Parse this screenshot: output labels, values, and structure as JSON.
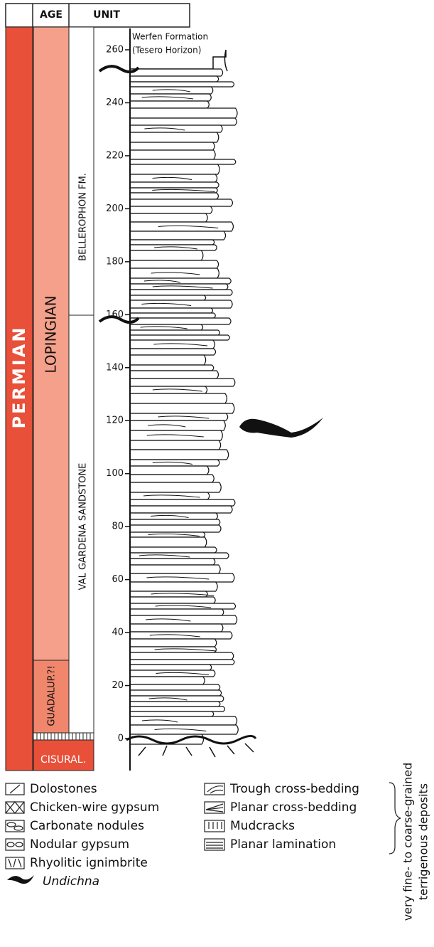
{
  "header": {
    "age": "AGE",
    "unit": "UNIT"
  },
  "age": {
    "period": "PERMIAN",
    "epochs": [
      "LOPINGIAN",
      "GUADALUP.?!",
      "CISURAL."
    ]
  },
  "units": [
    "BELLEROPHON FM.",
    "VAL GARDENA SANDSTONE"
  ],
  "top_unit": [
    "Werfen Formation",
    "(Tesero Horizon)"
  ],
  "scale": {
    "ticks": [
      0,
      20,
      40,
      60,
      80,
      100,
      120,
      140,
      160,
      180,
      200,
      220,
      240,
      260
    ]
  },
  "legend": {
    "left": [
      "Dolostones",
      "Chicken-wire gypsum",
      "Carbonate nodules",
      "Nodular gypsum",
      "Rhyolitic ignimbrite",
      "Undichna"
    ],
    "right": [
      "Trough cross-bedding",
      "Planar cross-bedding",
      "Mudcracks",
      "Planar lamination"
    ]
  },
  "bracket_label": [
    "very fine- to coarse-grained",
    "terrigenous deposits"
  ]
}
